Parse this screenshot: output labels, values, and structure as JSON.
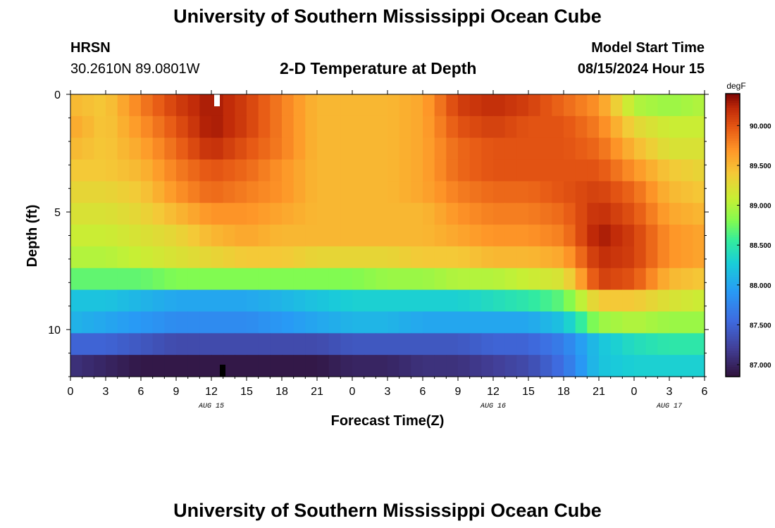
{
  "header": {
    "title": "University of Southern Mississippi Ocean Cube",
    "station": "HRSN",
    "location": "30.2610N  89.0801W",
    "subtitle": "2-D Temperature at Depth",
    "model_label": "Model Start Time",
    "model_time": "08/15/2024 Hour 15"
  },
  "footer": {
    "title": "University of Southern Mississippi Ocean Cube"
  },
  "chart_data": {
    "type": "heatmap",
    "title": "2-D Temperature at Depth",
    "xlabel": "Forecast Time(Z)",
    "ylabel": "Depth (ft)",
    "x_ticks": [
      "0",
      "3",
      "6",
      "9",
      "12",
      "15",
      "18",
      "21",
      "0",
      "3",
      "6",
      "9",
      "12",
      "15",
      "18",
      "21",
      "0",
      "3",
      "6"
    ],
    "date_labels": [
      "AUG 15",
      "AUG 16",
      "AUG 17"
    ],
    "y_ticks": [
      "0",
      "5",
      "10"
    ],
    "ylim": [
      0,
      12
    ],
    "colorbar": {
      "unit": "degF",
      "ticks": [
        "87.000",
        "87.500",
        "88.000",
        "88.500",
        "89.000",
        "89.500",
        "90.000"
      ],
      "range": [
        86.85,
        90.4
      ]
    },
    "x_hours": [
      0,
      3,
      6,
      9,
      12,
      15,
      18,
      21,
      24,
      27,
      30,
      33,
      36,
      39,
      42,
      45,
      48,
      51,
      54
    ],
    "depth_rows_ft": [
      0,
      1,
      2,
      3,
      4,
      5,
      6,
      7,
      8,
      9,
      10,
      11,
      12
    ],
    "values": [
      [
        89.5,
        89.4,
        89.8,
        90.1,
        90.3,
        90.1,
        89.8,
        89.5,
        89.5,
        89.5,
        89.6,
        90.1,
        90.2,
        90.1,
        89.9,
        89.7,
        89.0,
        88.9,
        89.0
      ],
      [
        89.6,
        89.4,
        89.7,
        90.0,
        90.3,
        90.1,
        89.8,
        89.5,
        89.5,
        89.5,
        89.6,
        90.0,
        90.1,
        90.0,
        90.0,
        89.8,
        89.3,
        89.1,
        89.1
      ],
      [
        89.5,
        89.4,
        89.6,
        89.9,
        90.2,
        90.0,
        89.8,
        89.5,
        89.5,
        89.5,
        89.6,
        89.9,
        90.0,
        90.0,
        90.0,
        89.9,
        89.5,
        89.2,
        89.2
      ],
      [
        89.4,
        89.4,
        89.5,
        89.8,
        90.0,
        89.9,
        89.7,
        89.5,
        89.5,
        89.5,
        89.6,
        89.9,
        90.0,
        90.0,
        90.0,
        90.0,
        89.7,
        89.4,
        89.3
      ],
      [
        89.3,
        89.3,
        89.4,
        89.7,
        89.9,
        89.8,
        89.7,
        89.5,
        89.5,
        89.5,
        89.6,
        89.8,
        89.9,
        89.9,
        90.0,
        90.1,
        89.9,
        89.5,
        89.4
      ],
      [
        89.2,
        89.2,
        89.3,
        89.5,
        89.7,
        89.7,
        89.6,
        89.5,
        89.5,
        89.5,
        89.5,
        89.7,
        89.8,
        89.8,
        89.9,
        90.2,
        90.0,
        89.6,
        89.5
      ],
      [
        89.1,
        89.1,
        89.2,
        89.3,
        89.5,
        89.6,
        89.5,
        89.5,
        89.5,
        89.5,
        89.5,
        89.6,
        89.7,
        89.7,
        89.8,
        90.3,
        90.1,
        89.7,
        89.6
      ],
      [
        89.0,
        89.0,
        89.1,
        89.2,
        89.3,
        89.4,
        89.4,
        89.3,
        89.3,
        89.3,
        89.4,
        89.4,
        89.5,
        89.5,
        89.6,
        90.2,
        90.1,
        89.7,
        89.6
      ],
      [
        88.7,
        88.7,
        88.7,
        88.8,
        88.8,
        88.8,
        88.8,
        88.8,
        88.8,
        88.9,
        88.9,
        89.0,
        89.0,
        89.1,
        89.2,
        90.1,
        90.0,
        89.5,
        89.4
      ],
      [
        88.2,
        88.2,
        88.1,
        88.0,
        88.0,
        88.0,
        88.1,
        88.2,
        88.3,
        88.3,
        88.3,
        88.3,
        88.4,
        88.5,
        88.7,
        89.4,
        89.4,
        89.2,
        89.1
      ],
      [
        88.1,
        88.0,
        87.9,
        87.8,
        87.8,
        87.8,
        87.9,
        88.0,
        88.1,
        88.1,
        88.0,
        88.0,
        88.0,
        88.0,
        88.2,
        88.9,
        89.0,
        88.9,
        88.9
      ],
      [
        87.5,
        87.5,
        87.4,
        87.3,
        87.3,
        87.3,
        87.3,
        87.3,
        87.4,
        87.4,
        87.4,
        87.4,
        87.5,
        87.5,
        87.7,
        88.2,
        88.4,
        88.5,
        88.5
      ],
      [
        87.1,
        87.0,
        86.9,
        86.9,
        86.9,
        86.9,
        86.9,
        86.9,
        87.0,
        87.0,
        87.1,
        87.1,
        87.2,
        87.3,
        87.6,
        88.2,
        88.3,
        88.3,
        88.3
      ]
    ]
  }
}
